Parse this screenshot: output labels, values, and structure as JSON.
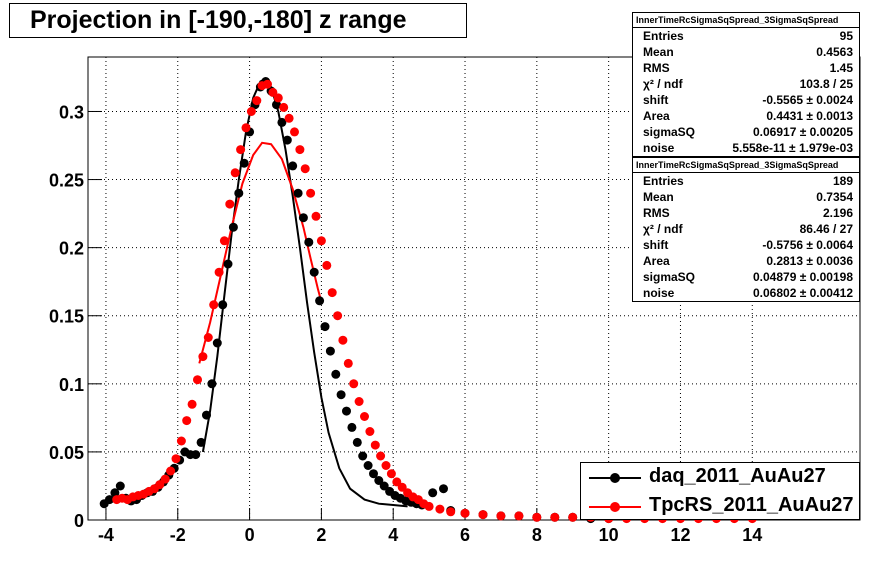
{
  "chart_data": {
    "type": "scatter",
    "title": "Projection in [-190,-180] z range",
    "xlim": [
      -4.5,
      17.0
    ],
    "ylim": [
      0,
      0.34
    ],
    "x_ticks": [
      -4,
      -2,
      0,
      2,
      4,
      6,
      8,
      10,
      12,
      14
    ],
    "y_ticks": [
      0,
      0.05,
      0.1,
      0.15,
      0.2,
      0.25,
      0.3
    ],
    "y_tick_labels": [
      "0",
      "0.05",
      "0.1",
      "0.15",
      "0.2",
      "0.25",
      "0.3"
    ],
    "grid": true,
    "legend_position": "bottom-right",
    "series": [
      {
        "name": "daq_2011_AuAu27",
        "color": "#000000",
        "points": [
          [
            -4.05,
            0.012
          ],
          [
            -3.9,
            0.015
          ],
          [
            -3.75,
            0.02
          ],
          [
            -3.6,
            0.025
          ],
          [
            -3.45,
            0.016
          ],
          [
            -3.3,
            0.014
          ],
          [
            -3.15,
            0.015
          ],
          [
            -3.0,
            0.018
          ],
          [
            -2.85,
            0.02
          ],
          [
            -2.7,
            0.021
          ],
          [
            -2.55,
            0.024
          ],
          [
            -2.4,
            0.028
          ],
          [
            -2.25,
            0.033
          ],
          [
            -2.1,
            0.038
          ],
          [
            -1.95,
            0.044
          ],
          [
            -1.8,
            0.05
          ],
          [
            -1.65,
            0.048
          ],
          [
            -1.5,
            0.048
          ],
          [
            -1.35,
            0.057
          ],
          [
            -1.2,
            0.077
          ],
          [
            -1.05,
            0.1
          ],
          [
            -0.9,
            0.13
          ],
          [
            -0.75,
            0.158
          ],
          [
            -0.6,
            0.188
          ],
          [
            -0.45,
            0.215
          ],
          [
            -0.3,
            0.24
          ],
          [
            -0.15,
            0.262
          ],
          [
            0.0,
            0.285
          ],
          [
            0.15,
            0.305
          ],
          [
            0.3,
            0.318
          ],
          [
            0.45,
            0.322
          ],
          [
            0.6,
            0.315
          ],
          [
            0.75,
            0.305
          ],
          [
            0.9,
            0.292
          ],
          [
            1.05,
            0.279
          ],
          [
            1.2,
            0.26
          ],
          [
            1.35,
            0.24
          ],
          [
            1.5,
            0.222
          ],
          [
            1.65,
            0.204
          ],
          [
            1.8,
            0.182
          ],
          [
            1.95,
            0.161
          ],
          [
            2.1,
            0.142
          ],
          [
            2.25,
            0.124
          ],
          [
            2.4,
            0.107
          ],
          [
            2.55,
            0.092
          ],
          [
            2.7,
            0.08
          ],
          [
            2.85,
            0.068
          ],
          [
            3.0,
            0.057
          ],
          [
            3.15,
            0.047
          ],
          [
            3.3,
            0.04
          ],
          [
            3.45,
            0.034
          ],
          [
            3.6,
            0.029
          ],
          [
            3.75,
            0.025
          ],
          [
            3.9,
            0.021
          ],
          [
            4.05,
            0.018
          ],
          [
            4.2,
            0.016
          ],
          [
            4.35,
            0.014
          ],
          [
            4.5,
            0.013
          ],
          [
            4.65,
            0.012
          ],
          [
            4.8,
            0.011
          ],
          [
            5.1,
            0.02
          ],
          [
            5.4,
            0.023
          ],
          [
            5.6,
            0.007
          ],
          [
            6.0,
            0.005
          ],
          [
            6.5,
            0.004
          ],
          [
            7.0,
            0.003
          ],
          [
            7.5,
            0.003
          ],
          [
            8.0,
            0.002
          ],
          [
            8.5,
            0.002
          ],
          [
            9.0,
            0.002
          ],
          [
            9.5,
            0.001
          ],
          [
            10.0,
            0.001
          ]
        ]
      },
      {
        "name": "TpcRS_2011_AuAu27",
        "color": "#ff0000",
        "points": [
          [
            -3.7,
            0.015
          ],
          [
            -3.55,
            0.016
          ],
          [
            -3.4,
            0.015
          ],
          [
            -3.25,
            0.017
          ],
          [
            -3.1,
            0.018
          ],
          [
            -2.95,
            0.019
          ],
          [
            -2.8,
            0.021
          ],
          [
            -2.65,
            0.023
          ],
          [
            -2.5,
            0.026
          ],
          [
            -2.35,
            0.03
          ],
          [
            -2.2,
            0.036
          ],
          [
            -2.05,
            0.045
          ],
          [
            -1.9,
            0.058
          ],
          [
            -1.75,
            0.073
          ],
          [
            -1.6,
            0.085
          ],
          [
            -1.45,
            0.103
          ],
          [
            -1.3,
            0.12
          ],
          [
            -1.15,
            0.134
          ],
          [
            -1.0,
            0.158
          ],
          [
            -0.85,
            0.182
          ],
          [
            -0.7,
            0.205
          ],
          [
            -0.55,
            0.232
          ],
          [
            -0.4,
            0.255
          ],
          [
            -0.25,
            0.272
          ],
          [
            -0.1,
            0.288
          ],
          [
            0.05,
            0.3
          ],
          [
            0.2,
            0.308
          ],
          [
            0.35,
            0.319
          ],
          [
            0.5,
            0.32
          ],
          [
            0.65,
            0.314
          ],
          [
            0.8,
            0.31
          ],
          [
            0.95,
            0.303
          ],
          [
            1.1,
            0.295
          ],
          [
            1.25,
            0.285
          ],
          [
            1.4,
            0.272
          ],
          [
            1.55,
            0.258
          ],
          [
            1.7,
            0.24
          ],
          [
            1.85,
            0.223
          ],
          [
            2.0,
            0.205
          ],
          [
            2.15,
            0.187
          ],
          [
            2.3,
            0.167
          ],
          [
            2.45,
            0.15
          ],
          [
            2.6,
            0.132
          ],
          [
            2.75,
            0.115
          ],
          [
            2.9,
            0.1
          ],
          [
            3.05,
            0.087
          ],
          [
            3.2,
            0.076
          ],
          [
            3.35,
            0.065
          ],
          [
            3.5,
            0.055
          ],
          [
            3.65,
            0.047
          ],
          [
            3.8,
            0.04
          ],
          [
            3.95,
            0.034
          ],
          [
            4.1,
            0.028
          ],
          [
            4.25,
            0.024
          ],
          [
            4.4,
            0.02
          ],
          [
            4.55,
            0.017
          ],
          [
            4.7,
            0.015
          ],
          [
            4.85,
            0.012
          ],
          [
            5.0,
            0.01
          ],
          [
            5.3,
            0.008
          ],
          [
            5.6,
            0.006
          ],
          [
            6.0,
            0.005
          ],
          [
            6.5,
            0.004
          ],
          [
            7.0,
            0.003
          ],
          [
            7.5,
            0.003
          ],
          [
            8.0,
            0.002
          ],
          [
            8.5,
            0.002
          ],
          [
            9.0,
            0.002
          ],
          [
            9.5,
            0.002
          ],
          [
            10.0,
            0.001
          ],
          [
            10.5,
            0.001
          ],
          [
            11.0,
            0.001
          ],
          [
            11.5,
            0.001
          ],
          [
            12.0,
            0.001
          ],
          [
            12.5,
            0.001
          ],
          [
            13.0,
            0.001
          ],
          [
            13.5,
            0.001
          ],
          [
            14.0,
            0.001
          ]
        ]
      }
    ],
    "fits": [
      {
        "series": "daq_2011_AuAu27",
        "color": "#000000",
        "points": [
          [
            -1.3,
            0.05
          ],
          [
            -1.1,
            0.08
          ],
          [
            -0.9,
            0.12
          ],
          [
            -0.7,
            0.165
          ],
          [
            -0.5,
            0.21
          ],
          [
            -0.3,
            0.25
          ],
          [
            -0.1,
            0.285
          ],
          [
            0.1,
            0.31
          ],
          [
            0.3,
            0.322
          ],
          [
            0.45,
            0.324
          ],
          [
            0.6,
            0.318
          ],
          [
            0.8,
            0.3
          ],
          [
            1.0,
            0.272
          ],
          [
            1.2,
            0.238
          ],
          [
            1.4,
            0.2
          ],
          [
            1.6,
            0.16
          ],
          [
            1.8,
            0.123
          ],
          [
            2.0,
            0.09
          ],
          [
            2.2,
            0.064
          ],
          [
            2.5,
            0.038
          ],
          [
            2.8,
            0.023
          ],
          [
            3.2,
            0.015
          ],
          [
            3.6,
            0.012
          ],
          [
            4.0,
            0.011
          ],
          [
            4.4,
            0.01
          ]
        ]
      },
      {
        "series": "TpcRS_2011_AuAu27",
        "color": "#ff0000",
        "points": [
          [
            -1.4,
            0.115
          ],
          [
            -1.1,
            0.145
          ],
          [
            -0.8,
            0.18
          ],
          [
            -0.5,
            0.215
          ],
          [
            -0.2,
            0.247
          ],
          [
            0.1,
            0.268
          ],
          [
            0.35,
            0.277
          ],
          [
            0.6,
            0.276
          ],
          [
            0.9,
            0.265
          ],
          [
            1.2,
            0.243
          ],
          [
            1.5,
            0.215
          ],
          [
            1.7,
            0.192
          ],
          [
            1.9,
            0.17
          ],
          [
            2.0,
            0.16
          ]
        ]
      }
    ]
  },
  "stats_boxes": [
    {
      "header": "InnerTimeRcSigmaSqSpread_3SigmaSqSpread",
      "rows": [
        {
          "label": "Entries",
          "value": "95"
        },
        {
          "label": "Mean",
          "value": "0.4563"
        },
        {
          "label": "RMS",
          "value": "1.45"
        },
        {
          "label": "χ² / ndf",
          "value": "103.8 / 25"
        },
        {
          "label": "shift",
          "value": "-0.5565 ± 0.0024"
        },
        {
          "label": "Area",
          "value": "0.4431 ± 0.0013"
        },
        {
          "label": "sigmaSQ",
          "value": "0.06917 ± 0.00205"
        },
        {
          "label": "noise",
          "value": "5.558e-11 ± 1.979e-03"
        }
      ]
    },
    {
      "header": "InnerTimeRcSigmaSqSpread_3SigmaSqSpread",
      "rows": [
        {
          "label": "Entries",
          "value": "189"
        },
        {
          "label": "Mean",
          "value": "0.7354"
        },
        {
          "label": "RMS",
          "value": "2.196"
        },
        {
          "label": "χ² / ndf",
          "value": "86.46 / 27"
        },
        {
          "label": "shift",
          "value": "-0.5756 ± 0.0064"
        },
        {
          "label": "Area",
          "value": "0.2813 ± 0.0036"
        },
        {
          "label": "sigmaSQ",
          "value": "0.04879 ± 0.00198"
        },
        {
          "label": "noise",
          "value": "0.06802 ± 0.00412"
        }
      ]
    }
  ],
  "legend": [
    {
      "label": "daq_2011_AuAu27",
      "color": "#000000"
    },
    {
      "label": "TpcRS_2011_AuAu27",
      "color": "#ff0000"
    }
  ]
}
